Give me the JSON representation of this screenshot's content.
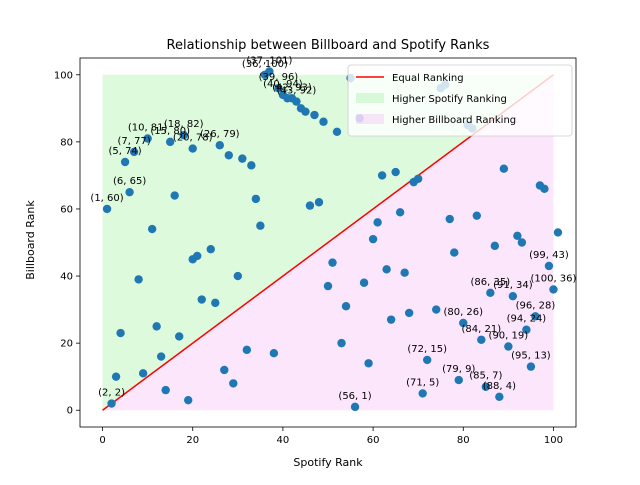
{
  "chart_data": {
    "type": "scatter",
    "title": "Relationship between Billboard and Spotify Ranks",
    "xlabel": "Spotify Rank",
    "ylabel": "Billboard Rank",
    "xlim": [
      -5,
      105
    ],
    "ylim": [
      -5,
      105
    ],
    "xticks": [
      "0",
      "20",
      "40",
      "60",
      "80",
      "100"
    ],
    "yticks": [
      "0",
      "20",
      "40",
      "60",
      "80",
      "100"
    ],
    "grid": false,
    "legend_position": "top-right",
    "colors": {
      "points": "#1f77b4",
      "equal_line": "#ff0000",
      "higher_spotify_fill": "#90ee90",
      "higher_billboard_fill": "#ee82ee"
    },
    "legend": [
      {
        "label": "Equal Ranking",
        "kind": "line",
        "color": "#ff0000"
      },
      {
        "label": "Higher Spotify Ranking",
        "kind": "patch",
        "color": "#90ee90"
      },
      {
        "label": "Higher Billboard Ranking",
        "kind": "patch",
        "color": "#ee82ee"
      }
    ],
    "equal_line": {
      "x": [
        0,
        100
      ],
      "y": [
        0,
        100
      ]
    },
    "points": [
      [
        2,
        2
      ],
      [
        1,
        60
      ],
      [
        6,
        65
      ],
      [
        5,
        74
      ],
      [
        7,
        77
      ],
      [
        10,
        81
      ],
      [
        15,
        80
      ],
      [
        18,
        82
      ],
      [
        26,
        79
      ],
      [
        20,
        78
      ],
      [
        36,
        100
      ],
      [
        37,
        101
      ],
      [
        39,
        96
      ],
      [
        40,
        94
      ],
      [
        42,
        93
      ],
      [
        43,
        92
      ],
      [
        56,
        1
      ],
      [
        71,
        5
      ],
      [
        72,
        15
      ],
      [
        79,
        9
      ],
      [
        85,
        7
      ],
      [
        88,
        4
      ],
      [
        80,
        26
      ],
      [
        84,
        21
      ],
      [
        86,
        35
      ],
      [
        91,
        34
      ],
      [
        94,
        24
      ],
      [
        96,
        28
      ],
      [
        90,
        19
      ],
      [
        95,
        13
      ],
      [
        99,
        43
      ],
      [
        100,
        36
      ],
      [
        3,
        10
      ],
      [
        4,
        23
      ],
      [
        8,
        39
      ],
      [
        9,
        11
      ],
      [
        11,
        54
      ],
      [
        12,
        25
      ],
      [
        13,
        16
      ],
      [
        14,
        6
      ],
      [
        16,
        64
      ],
      [
        17,
        22
      ],
      [
        19,
        3
      ],
      [
        20,
        45
      ],
      [
        21,
        46
      ],
      [
        22,
        33
      ],
      [
        24,
        48
      ],
      [
        25,
        32
      ],
      [
        27,
        12
      ],
      [
        28,
        76
      ],
      [
        29,
        8
      ],
      [
        30,
        40
      ],
      [
        31,
        75
      ],
      [
        32,
        18
      ],
      [
        33,
        73
      ],
      [
        34,
        63
      ],
      [
        35,
        55
      ],
      [
        38,
        17
      ],
      [
        41,
        93
      ],
      [
        44,
        90
      ],
      [
        45,
        89
      ],
      [
        47,
        88
      ],
      [
        46,
        61
      ],
      [
        48,
        62
      ],
      [
        49,
        86
      ],
      [
        50,
        37
      ],
      [
        51,
        44
      ],
      [
        52,
        83
      ],
      [
        53,
        20
      ],
      [
        54,
        31
      ],
      [
        55,
        99
      ],
      [
        57,
        87
      ],
      [
        58,
        38
      ],
      [
        59,
        14
      ],
      [
        60,
        51
      ],
      [
        61,
        56
      ],
      [
        62,
        70
      ],
      [
        63,
        42
      ],
      [
        64,
        27
      ],
      [
        65,
        71
      ],
      [
        66,
        59
      ],
      [
        67,
        41
      ],
      [
        68,
        29
      ],
      [
        69,
        68
      ],
      [
        70,
        69
      ],
      [
        74,
        30
      ],
      [
        75,
        96
      ],
      [
        76,
        97
      ],
      [
        77,
        57
      ],
      [
        78,
        47
      ],
      [
        81,
        85
      ],
      [
        82,
        84
      ],
      [
        83,
        58
      ],
      [
        87,
        49
      ],
      [
        89,
        72
      ],
      [
        92,
        52
      ],
      [
        93,
        50
      ],
      [
        97,
        67
      ],
      [
        98,
        66
      ],
      [
        101,
        53
      ]
    ],
    "annotations": [
      {
        "text": "(2, 2)",
        "x": 2,
        "y": 2
      },
      {
        "text": "(1, 60)",
        "x": 1,
        "y": 60
      },
      {
        "text": "(6, 65)",
        "x": 6,
        "y": 65
      },
      {
        "text": "(5, 74)",
        "x": 5,
        "y": 74
      },
      {
        "text": "(7, 77)",
        "x": 7,
        "y": 77
      },
      {
        "text": "(10, 81)",
        "x": 10,
        "y": 81
      },
      {
        "text": "(15, 80)",
        "x": 15,
        "y": 80
      },
      {
        "text": "(18, 82)",
        "x": 18,
        "y": 82
      },
      {
        "text": "(26, 79)",
        "x": 26,
        "y": 79
      },
      {
        "text": "(20, 78)",
        "x": 20,
        "y": 78
      },
      {
        "text": "(36, 100)",
        "x": 36,
        "y": 100
      },
      {
        "text": "(37, 101)",
        "x": 37,
        "y": 101
      },
      {
        "text": "(39, 96)",
        "x": 39,
        "y": 96
      },
      {
        "text": "(40, 94)",
        "x": 40,
        "y": 94
      },
      {
        "text": "(42, 93)",
        "x": 42,
        "y": 93
      },
      {
        "text": "(43, 92)",
        "x": 43,
        "y": 92
      },
      {
        "text": "(56, 1)",
        "x": 56,
        "y": 1
      },
      {
        "text": "(71, 5)",
        "x": 71,
        "y": 5
      },
      {
        "text": "(72, 15)",
        "x": 72,
        "y": 15
      },
      {
        "text": "(79, 9)",
        "x": 79,
        "y": 9
      },
      {
        "text": "(85, 7)",
        "x": 85,
        "y": 7
      },
      {
        "text": "(88, 4)",
        "x": 88,
        "y": 4
      },
      {
        "text": "(80, 26)",
        "x": 80,
        "y": 26
      },
      {
        "text": "(84, 21)",
        "x": 84,
        "y": 21
      },
      {
        "text": "(86, 35)",
        "x": 86,
        "y": 35
      },
      {
        "text": "(91, 34)",
        "x": 91,
        "y": 34
      },
      {
        "text": "(94, 24)",
        "x": 94,
        "y": 24
      },
      {
        "text": "(96, 28)",
        "x": 96,
        "y": 28
      },
      {
        "text": "(90, 19)",
        "x": 90,
        "y": 19
      },
      {
        "text": "(95, 13)",
        "x": 95,
        "y": 13
      },
      {
        "text": "(99, 43)",
        "x": 99,
        "y": 43
      },
      {
        "text": "(100, 36)",
        "x": 100,
        "y": 36
      }
    ]
  }
}
